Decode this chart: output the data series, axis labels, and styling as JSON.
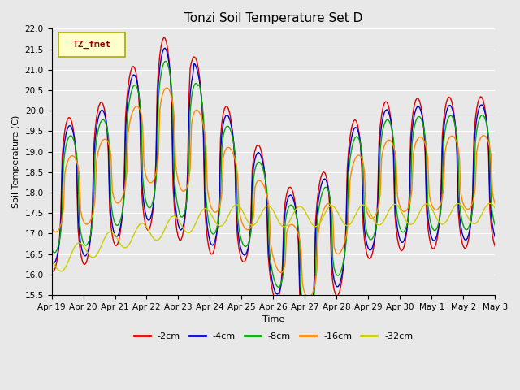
{
  "title": "Tonzi Soil Temperature Set D",
  "xlabel": "Time",
  "ylabel": "Soil Temperature (C)",
  "ylim": [
    15.5,
    22.0
  ],
  "yticks": [
    15.5,
    16.0,
    16.5,
    17.0,
    17.5,
    18.0,
    18.5,
    19.0,
    19.5,
    20.0,
    20.5,
    21.0,
    21.5,
    22.0
  ],
  "series_labels": [
    "-2cm",
    "-4cm",
    "-8cm",
    "-16cm",
    "-32cm"
  ],
  "series_colors": [
    "#dd0000",
    "#0000cc",
    "#00aa00",
    "#ff8800",
    "#cccc00"
  ],
  "background_color": "#e8e8e8",
  "legend_label": "TZ_fmet",
  "legend_box_facecolor": "#ffffcc",
  "legend_box_edgecolor": "#aaaa00",
  "legend_text_color": "#880000",
  "title_fontsize": 11,
  "label_fontsize": 8,
  "tick_fontsize": 7.5
}
